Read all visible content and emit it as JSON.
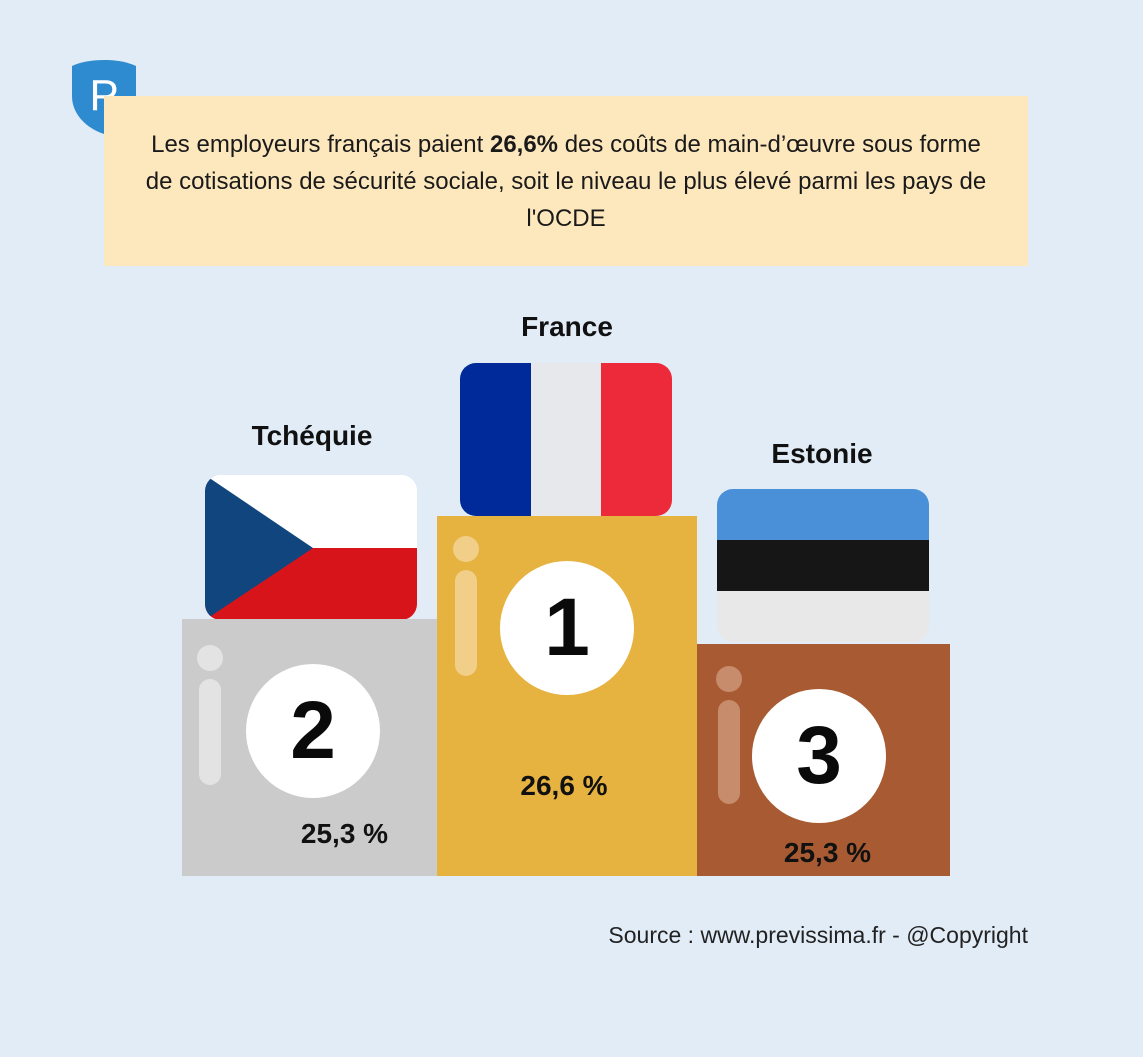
{
  "headline": {
    "before": "Les employeurs français paient ",
    "highlight": "26,6%",
    "after": " des coûts de main-d’œuvre sous forme de cotisations de sécurité sociale, soit le niveau le plus élevé parmi les pays de l'OCDE"
  },
  "logo": {
    "letter": "P",
    "icon": "shield-logo-icon",
    "color": "#2e8bd0"
  },
  "podium": [
    {
      "rank": "1",
      "country": "France",
      "value": "26,6 %",
      "flag": "france-flag-icon",
      "color": "#e6b240"
    },
    {
      "rank": "2",
      "country": "Tchéquie",
      "value": "25,3 %",
      "flag": "czechia-flag-icon",
      "color": "#cbcbcc"
    },
    {
      "rank": "3",
      "country": "Estonie",
      "value": "25,3 %",
      "flag": "estonia-flag-icon",
      "color": "#a85b33"
    }
  ],
  "flag_colors": {
    "france": [
      "#002a9a",
      "#e6e8ec",
      "#ec2a3a"
    ],
    "czechia": [
      "#ffffff",
      "#d7141a",
      "#11457e"
    ],
    "estonia": [
      "#4a90d9",
      "#161616",
      "#e8e8e8"
    ]
  },
  "source": "Source : www.previssima.fr - @Copyright"
}
